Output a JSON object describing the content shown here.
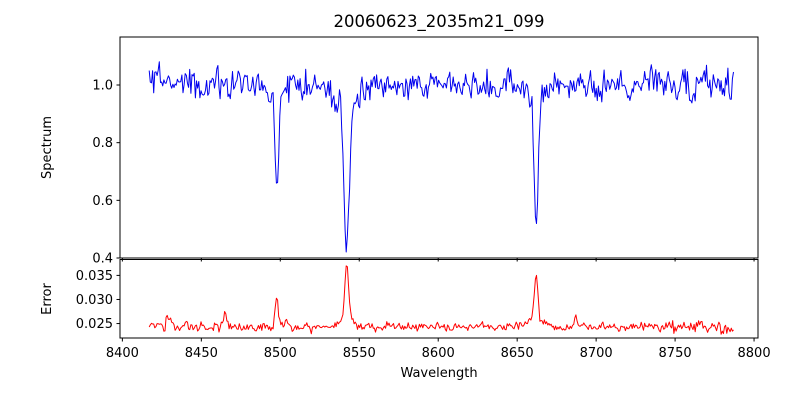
{
  "chart_data": {
    "type": "line",
    "title": "20060623_2035m21_099",
    "xlabel": "Wavelength",
    "background_color": "#ffffff",
    "axis_color": "#000000",
    "grid": false,
    "legend": false,
    "x_axis": {
      "lim": [
        8398.5,
        8802.5
      ],
      "ticks": [
        8400,
        8450,
        8500,
        8550,
        8600,
        8650,
        8700,
        8750,
        8800
      ],
      "tick_labels": [
        "8400",
        "8450",
        "8500",
        "8550",
        "8600",
        "8650",
        "8700",
        "8750",
        "8800"
      ]
    },
    "panels": [
      {
        "name": "spectrum",
        "ylabel": "Spectrum",
        "line_color": "#0000ee",
        "ylim": [
          0.4,
          1.1665
        ],
        "yticks": [
          0.4,
          0.6,
          0.8,
          1.0
        ],
        "ytick_labels": [
          "0.4",
          "0.6",
          "0.8",
          "1.0"
        ],
        "series": {
          "x_start": 8417,
          "x_end": 8787,
          "n_points": 520,
          "baseline": 1.0,
          "noise_sigma": 0.025,
          "edge_noise_boost": 0.4,
          "seed": 20060623,
          "features": [
            {
              "center": 8498.0,
              "amplitude": -0.33,
              "sigma": 1.1
            },
            {
              "center": 8498.0,
              "amplitude": -0.05,
              "sigma": 4.0
            },
            {
              "center": 8542.1,
              "amplitude": -0.47,
              "sigma": 1.6
            },
            {
              "center": 8542.1,
              "amplitude": -0.1,
              "sigma": 6.0
            },
            {
              "center": 8662.1,
              "amplitude": -0.4,
              "sigma": 1.3
            },
            {
              "center": 8662.1,
              "amplitude": -0.08,
              "sigma": 5.0
            }
          ],
          "notable_minima": [
            {
              "wavelength": 8498,
              "value": 0.63
            },
            {
              "wavelength": 8542,
              "value": 0.44
            },
            {
              "wavelength": 8662,
              "value": 0.52
            }
          ]
        }
      },
      {
        "name": "error",
        "ylabel": "Error",
        "line_color": "#ff0000",
        "ylim": [
          0.022,
          0.0383
        ],
        "yticks": [
          0.025,
          0.03,
          0.035
        ],
        "ytick_labels": [
          "0.025",
          "0.030",
          "0.035"
        ],
        "series": {
          "x_start": 8417,
          "x_end": 8787,
          "n_points": 520,
          "baseline": 0.0243,
          "noise_sigma": 0.0005,
          "edge_noise_boost": 0.6,
          "seed": 2035,
          "features": [
            {
              "center": 8429.0,
              "amplitude": 0.0026,
              "sigma": 0.9
            },
            {
              "center": 8465.0,
              "amplitude": 0.0026,
              "sigma": 1.0
            },
            {
              "center": 8497.5,
              "amplitude": 0.006,
              "sigma": 1.0
            },
            {
              "center": 8504.0,
              "amplitude": 0.0015,
              "sigma": 1.2
            },
            {
              "center": 8542.0,
              "amplitude": 0.0115,
              "sigma": 1.1
            },
            {
              "center": 8542.0,
              "amplitude": 0.0018,
              "sigma": 5.0
            },
            {
              "center": 8662.0,
              "amplitude": 0.009,
              "sigma": 1.1
            },
            {
              "center": 8662.0,
              "amplitude": 0.0018,
              "sigma": 5.0
            },
            {
              "center": 8687.0,
              "amplitude": 0.0022,
              "sigma": 0.8
            }
          ],
          "notable_maxima": [
            {
              "wavelength": 8498,
              "value": 0.031
            },
            {
              "wavelength": 8542,
              "value": 0.0377
            },
            {
              "wavelength": 8662,
              "value": 0.035
            }
          ]
        }
      }
    ]
  }
}
